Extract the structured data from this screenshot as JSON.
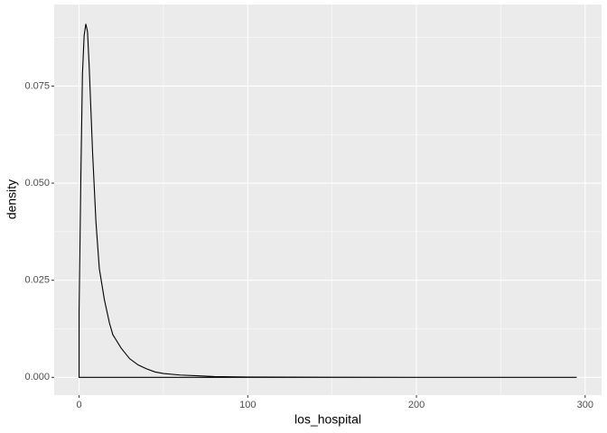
{
  "chart_data": {
    "type": "area-outline",
    "x_label": "los_hospital",
    "y_label": "density",
    "x": [
      0,
      0,
      1,
      2,
      3,
      4,
      5,
      6,
      8,
      10,
      12,
      15,
      18,
      20,
      25,
      30,
      35,
      40,
      45,
      50,
      60,
      70,
      80,
      100,
      150,
      200,
      295
    ],
    "values": [
      0,
      0.0168,
      0.05,
      0.078,
      0.088,
      0.091,
      0.089,
      0.08,
      0.058,
      0.04,
      0.028,
      0.02,
      0.014,
      0.011,
      0.0075,
      0.0048,
      0.0032,
      0.0022,
      0.0014,
      0.001,
      0.0006,
      0.0004,
      0.0002,
      0.0001,
      3e-05,
      1e-05,
      0
    ],
    "closed": true,
    "color": "#000000",
    "xlim": [
      -14.75,
      309.75
    ],
    "ylim": [
      -0.00457,
      0.096
    ],
    "xticks": [
      0,
      100,
      200,
      300
    ],
    "yticks": [
      {
        "value": 0,
        "label": "0.000"
      },
      {
        "value": 0.025,
        "label": "0.025"
      },
      {
        "value": 0.05,
        "label": "0.050"
      },
      {
        "value": 0.075,
        "label": "0.075"
      }
    ],
    "x_minor_grid": [
      50,
      150,
      250
    ],
    "y_minor_grid": [
      0.0125,
      0.0375,
      0.0625,
      0.0875
    ],
    "grid": true
  }
}
